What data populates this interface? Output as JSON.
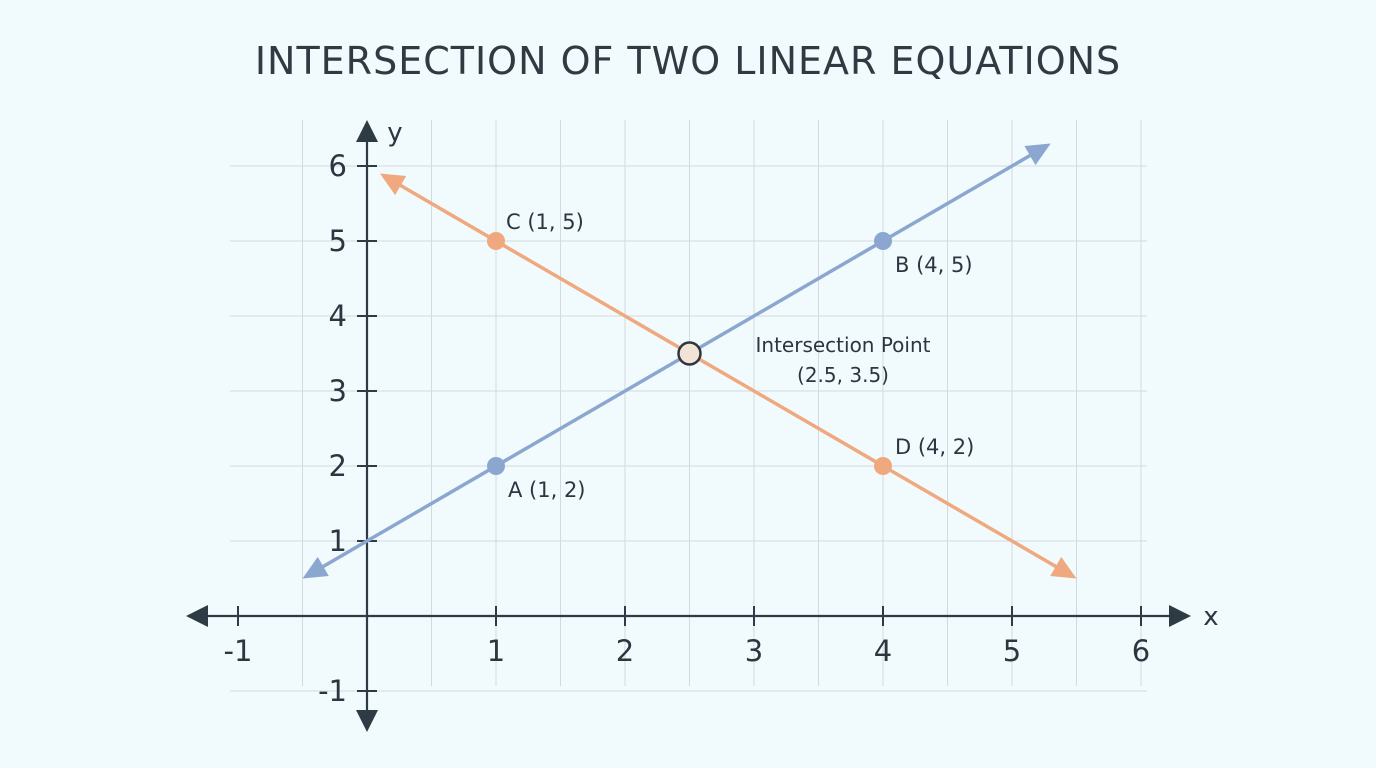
{
  "chart_data": {
    "type": "line",
    "title": "INTERSECTION OF TWO LINEAR EQUATIONS",
    "xlabel": "x",
    "ylabel": "y",
    "xlim": [
      -1,
      6
    ],
    "ylim": [
      -1,
      6
    ],
    "grid": true,
    "x_ticks": [
      -1,
      1,
      2,
      3,
      4,
      5,
      6
    ],
    "y_ticks": [
      -1,
      1,
      2,
      3,
      4,
      5,
      6
    ],
    "series": [
      {
        "key": "line_ab",
        "color": "#8ba7cf",
        "extent": [
          [
            -0.5,
            0.5
          ],
          [
            5.3,
            6.3
          ]
        ],
        "points": [
          {
            "x": 1,
            "y": 2,
            "label": "A (1, 2)"
          },
          {
            "x": 4,
            "y": 5,
            "label": "B (4, 5)"
          }
        ]
      },
      {
        "key": "line_cd",
        "color": "#f0a97f",
        "extent": [
          [
            0.1,
            5.9
          ],
          [
            5.5,
            0.5
          ]
        ],
        "points": [
          {
            "x": 1,
            "y": 5,
            "label": "C (1, 5)"
          },
          {
            "x": 4,
            "y": 2,
            "label": "D (4, 2)"
          }
        ]
      }
    ],
    "intersection": {
      "x": 2.5,
      "y": 3.5,
      "label_line1": "Intersection Point",
      "label_line2": "(2.5, 3.5)"
    }
  }
}
